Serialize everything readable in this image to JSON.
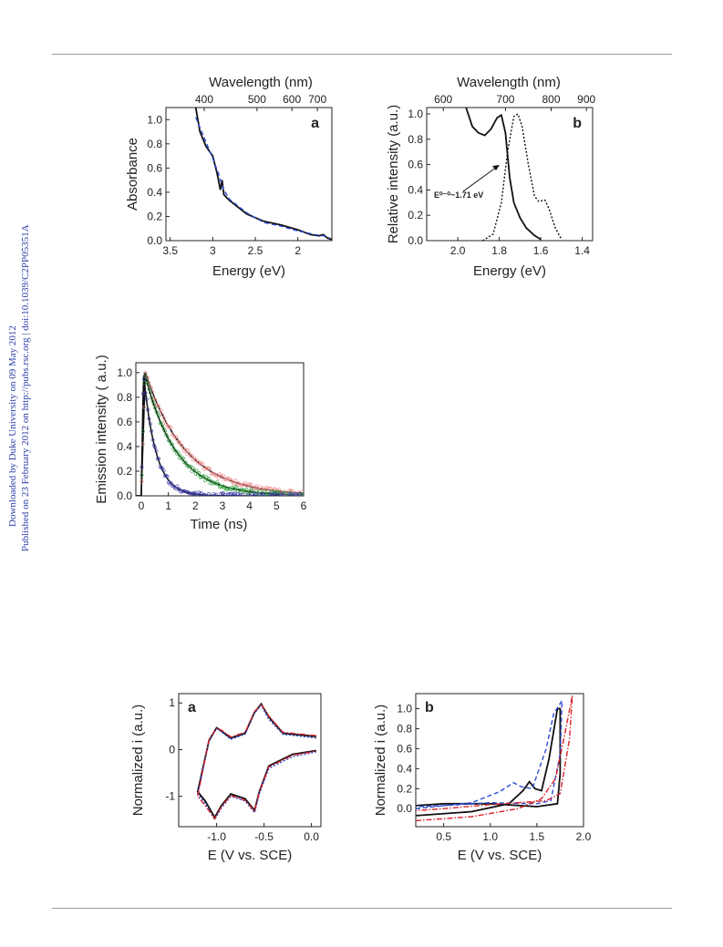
{
  "sidebar": {
    "line1": "Downloaded by Duke University on 09 May 2012",
    "line2": "Published on 23 February 2012 on http://pubs.rsc.org | doi:10.1039/C2PP05351A"
  },
  "colors": {
    "black": "#111111",
    "blue": "#2b4cd6",
    "red": "#d8232a",
    "green": "#2b9a3b",
    "pink": "#f08c8c",
    "navy": "#3a3aa8"
  },
  "chart_data": [
    {
      "id": "fig1a",
      "type": "line",
      "panel_label": "a",
      "xlabel": "Energy (eV)",
      "x2label": "Wavelength (nm)",
      "ylabel": "Absorbance",
      "xlim": [
        3.55,
        1.6
      ],
      "ylim": [
        0,
        1.1
      ],
      "xticks": [
        "3.5",
        "3",
        "2.5",
        "2"
      ],
      "xtick_values": [
        3.5,
        3.0,
        2.5,
        2.0
      ],
      "x2ticks": [
        "400",
        "500",
        "600",
        "700"
      ],
      "x2tick_values": [
        3.1,
        2.48,
        2.07,
        1.77
      ],
      "yticks": [
        "0.0",
        "0.2",
        "0.4",
        "0.6",
        "0.8",
        "1.0"
      ],
      "ytick_values": [
        0.0,
        0.2,
        0.4,
        0.6,
        0.8,
        1.0
      ],
      "series": [
        {
          "style": "solid",
          "color": "#111111",
          "points": [
            [
              3.2,
              1.1
            ],
            [
              3.15,
              0.9
            ],
            [
              3.08,
              0.78
            ],
            [
              3.0,
              0.7
            ],
            [
              2.95,
              0.56
            ],
            [
              2.91,
              0.42
            ],
            [
              2.89,
              0.5
            ],
            [
              2.87,
              0.38
            ],
            [
              2.8,
              0.33
            ],
            [
              2.6,
              0.22
            ],
            [
              2.4,
              0.16
            ],
            [
              2.2,
              0.13
            ],
            [
              2.0,
              0.09
            ],
            [
              1.85,
              0.05
            ],
            [
              1.75,
              0.04
            ],
            [
              1.7,
              0.05
            ],
            [
              1.65,
              0.02
            ],
            [
              1.6,
              0.01
            ]
          ]
        },
        {
          "style": "dashed",
          "color": "#2b4cd6",
          "points": [
            [
              3.2,
              1.02
            ],
            [
              3.1,
              0.85
            ],
            [
              3.0,
              0.68
            ],
            [
              2.93,
              0.55
            ],
            [
              2.88,
              0.43
            ],
            [
              2.8,
              0.34
            ],
            [
              2.6,
              0.23
            ],
            [
              2.4,
              0.15
            ],
            [
              2.2,
              0.12
            ],
            [
              2.0,
              0.08
            ],
            [
              1.8,
              0.05
            ],
            [
              1.7,
              0.04
            ],
            [
              1.62,
              0.02
            ]
          ]
        }
      ]
    },
    {
      "id": "fig1b",
      "type": "line",
      "panel_label": "b",
      "xlabel": "Energy (eV)",
      "x2label": "Wavelength (nm)",
      "ylabel": "Relative intensity (a.u.)",
      "xlim": [
        2.15,
        1.35
      ],
      "ylim": [
        0,
        1.05
      ],
      "xticks": [
        "2.0",
        "1.8",
        "1.6",
        "1.4"
      ],
      "xtick_values": [
        2.0,
        1.8,
        1.6,
        1.4
      ],
      "x2ticks": [
        "600",
        "700",
        "800",
        "900"
      ],
      "x2tick_values": [
        2.07,
        1.77,
        1.55,
        1.38
      ],
      "yticks": [
        "0.0",
        "0.2",
        "0.4",
        "0.6",
        "0.8",
        "1.0"
      ],
      "ytick_values": [
        0.0,
        0.2,
        0.4,
        0.6,
        0.8,
        1.0
      ],
      "annotation": "E⁰⁻⁰~1.71 eV",
      "series": [
        {
          "style": "solid",
          "color": "#111111",
          "points": [
            [
              1.96,
              1.05
            ],
            [
              1.93,
              0.9
            ],
            [
              1.9,
              0.85
            ],
            [
              1.87,
              0.83
            ],
            [
              1.84,
              0.88
            ],
            [
              1.81,
              0.97
            ],
            [
              1.79,
              0.99
            ],
            [
              1.77,
              0.85
            ],
            [
              1.75,
              0.5
            ],
            [
              1.73,
              0.3
            ],
            [
              1.7,
              0.18
            ],
            [
              1.67,
              0.1
            ],
            [
              1.63,
              0.04
            ],
            [
              1.6,
              0.01
            ]
          ]
        },
        {
          "style": "dotted",
          "color": "#111111",
          "points": [
            [
              1.88,
              0.0
            ],
            [
              1.83,
              0.05
            ],
            [
              1.79,
              0.3
            ],
            [
              1.76,
              0.7
            ],
            [
              1.73,
              0.98
            ],
            [
              1.71,
              1.0
            ],
            [
              1.69,
              0.9
            ],
            [
              1.66,
              0.6
            ],
            [
              1.63,
              0.35
            ],
            [
              1.61,
              0.31
            ],
            [
              1.58,
              0.32
            ],
            [
              1.56,
              0.25
            ],
            [
              1.53,
              0.1
            ],
            [
              1.5,
              0.01
            ]
          ]
        }
      ]
    },
    {
      "id": "fig2",
      "type": "line",
      "xlabel": "Time (ns)",
      "ylabel": "Emission intensity ( a.u.)",
      "xlim": [
        -0.2,
        6
      ],
      "ylim": [
        0,
        1.08
      ],
      "xticks": [
        "0",
        "1",
        "2",
        "3",
        "4",
        "5",
        "6"
      ],
      "xtick_values": [
        0,
        1,
        2,
        3,
        4,
        5,
        6
      ],
      "yticks": [
        "0.0",
        "0.2",
        "0.4",
        "0.6",
        "0.8",
        "1.0"
      ],
      "ytick_values": [
        0.0,
        0.2,
        0.4,
        0.6,
        0.8,
        1.0
      ],
      "series": [
        {
          "role": "fit",
          "color": "#111111",
          "tau": 1.5,
          "rise": 0.15
        },
        {
          "role": "fit",
          "color": "#111111",
          "tau": 1.15,
          "rise": 0.12
        },
        {
          "role": "fit",
          "color": "#111111",
          "tau": 0.45,
          "rise": 0.08
        },
        {
          "role": "data",
          "color": "#f08c8c",
          "tau": 1.5,
          "rise": 0.15
        },
        {
          "role": "data",
          "color": "#2b9a3b",
          "tau": 1.15,
          "rise": 0.12
        },
        {
          "role": "data",
          "color": "#3a3aa8",
          "tau": 0.45,
          "rise": 0.08
        }
      ]
    },
    {
      "id": "fig3a",
      "type": "line",
      "panel_label": "a",
      "xlabel": "E (V vs. SCE)",
      "ylabel": "Normalized i  (a.u.)",
      "xlim": [
        -1.4,
        0.1
      ],
      "ylim": [
        -1.65,
        1.2
      ],
      "xticks": [
        "-1.0",
        "-0.5",
        "0.0"
      ],
      "xtick_values": [
        -1.0,
        -0.5,
        0.0
      ],
      "yticks": [
        "-1",
        "0",
        "1"
      ],
      "ytick_values": [
        -1,
        0,
        1
      ],
      "series": [
        {
          "style": "solid",
          "color": "#111111",
          "points": [
            [
              0.05,
              0.28
            ],
            [
              -0.3,
              0.35
            ],
            [
              -0.45,
              0.7
            ],
            [
              -0.53,
              0.98
            ],
            [
              -0.6,
              0.8
            ],
            [
              -0.7,
              0.35
            ],
            [
              -0.85,
              0.25
            ],
            [
              -0.95,
              0.4
            ],
            [
              -1.0,
              0.47
            ],
            [
              -1.08,
              0.2
            ],
            [
              -1.2,
              -0.9
            ],
            [
              -1.12,
              -1.1
            ],
            [
              -1.02,
              -1.45
            ],
            [
              -0.95,
              -1.2
            ],
            [
              -0.85,
              -0.95
            ],
            [
              -0.7,
              -1.05
            ],
            [
              -0.6,
              -1.3
            ],
            [
              -0.55,
              -0.9
            ],
            [
              -0.45,
              -0.35
            ],
            [
              -0.2,
              -0.1
            ],
            [
              0.05,
              -0.02
            ]
          ]
        },
        {
          "style": "dotted",
          "color": "#2b4cd6",
          "points": [
            [
              0.05,
              0.25
            ],
            [
              -0.3,
              0.33
            ],
            [
              -0.45,
              0.65
            ],
            [
              -0.53,
              0.95
            ],
            [
              -0.6,
              0.78
            ],
            [
              -0.7,
              0.33
            ],
            [
              -0.85,
              0.22
            ],
            [
              -0.95,
              0.38
            ],
            [
              -1.0,
              0.45
            ],
            [
              -1.08,
              0.18
            ],
            [
              -1.2,
              -0.95
            ],
            [
              -1.12,
              -1.15
            ],
            [
              -1.02,
              -1.5
            ],
            [
              -0.95,
              -1.25
            ],
            [
              -0.85,
              -1.0
            ],
            [
              -0.7,
              -1.1
            ],
            [
              -0.6,
              -1.35
            ],
            [
              -0.55,
              -0.95
            ],
            [
              -0.45,
              -0.4
            ],
            [
              -0.2,
              -0.15
            ],
            [
              0.05,
              -0.05
            ]
          ]
        },
        {
          "style": "dashdot",
          "color": "#d8232a",
          "points": [
            [
              0.05,
              0.3
            ],
            [
              -0.3,
              0.37
            ],
            [
              -0.45,
              0.72
            ],
            [
              -0.53,
              0.97
            ],
            [
              -0.6,
              0.82
            ],
            [
              -0.7,
              0.37
            ],
            [
              -0.85,
              0.27
            ],
            [
              -0.95,
              0.42
            ],
            [
              -1.0,
              0.46
            ],
            [
              -1.08,
              0.22
            ],
            [
              -1.2,
              -1.0
            ],
            [
              -1.12,
              -1.2
            ],
            [
              -1.02,
              -1.48
            ],
            [
              -0.95,
              -1.22
            ],
            [
              -0.85,
              -0.98
            ],
            [
              -0.7,
              -1.08
            ],
            [
              -0.6,
              -1.32
            ],
            [
              -0.55,
              -0.92
            ],
            [
              -0.45,
              -0.37
            ],
            [
              -0.2,
              -0.12
            ],
            [
              0.05,
              -0.03
            ]
          ]
        }
      ]
    },
    {
      "id": "fig3b",
      "type": "line",
      "panel_label": "b",
      "xlabel": "E (V vs. SCE)",
      "ylabel": "Normalized i  (a.u.)",
      "xlim": [
        0.2,
        2.0
      ],
      "ylim": [
        -0.18,
        1.15
      ],
      "xticks": [
        "0.5",
        "1.0",
        "1.5",
        "2.0"
      ],
      "xtick_values": [
        0.5,
        1.0,
        1.5,
        2.0
      ],
      "yticks": [
        "0.0",
        "0.2",
        "0.4",
        "0.6",
        "0.8",
        "1.0"
      ],
      "ytick_values": [
        0.0,
        0.2,
        0.4,
        0.6,
        0.8,
        1.0
      ],
      "series": [
        {
          "style": "solid",
          "color": "#111111",
          "points": [
            [
              0.2,
              -0.07
            ],
            [
              0.8,
              -0.03
            ],
            [
              1.2,
              0.05
            ],
            [
              1.35,
              0.18
            ],
            [
              1.42,
              0.27
            ],
            [
              1.48,
              0.2
            ],
            [
              1.55,
              0.18
            ],
            [
              1.63,
              0.5
            ],
            [
              1.72,
              1.0
            ],
            [
              1.75,
              1.0
            ],
            [
              1.75,
              0.35
            ],
            [
              1.72,
              0.05
            ],
            [
              1.5,
              0.02
            ],
            [
              1.0,
              0.05
            ],
            [
              0.5,
              0.05
            ],
            [
              0.2,
              0.03
            ]
          ]
        },
        {
          "style": "dashed",
          "color": "#2b4cd6",
          "points": [
            [
              0.2,
              0.0
            ],
            [
              0.8,
              0.06
            ],
            [
              1.1,
              0.17
            ],
            [
              1.25,
              0.26
            ],
            [
              1.33,
              0.22
            ],
            [
              1.45,
              0.2
            ],
            [
              1.6,
              0.6
            ],
            [
              1.68,
              0.95
            ],
            [
              1.77,
              1.08
            ],
            [
              1.75,
              0.55
            ],
            [
              1.65,
              0.08
            ],
            [
              1.5,
              0.05
            ],
            [
              1.0,
              0.06
            ],
            [
              0.5,
              0.03
            ],
            [
              0.2,
              0.02
            ]
          ]
        },
        {
          "style": "dashdot",
          "color": "#d8232a",
          "points": [
            [
              0.2,
              -0.12
            ],
            [
              0.8,
              -0.08
            ],
            [
              1.3,
              0.0
            ],
            [
              1.55,
              0.1
            ],
            [
              1.7,
              0.3
            ],
            [
              1.8,
              0.75
            ],
            [
              1.88,
              1.13
            ],
            [
              1.85,
              0.7
            ],
            [
              1.75,
              0.15
            ],
            [
              1.6,
              0.08
            ],
            [
              1.0,
              0.04
            ],
            [
              0.5,
              0.0
            ],
            [
              0.2,
              -0.02
            ]
          ]
        }
      ]
    }
  ]
}
